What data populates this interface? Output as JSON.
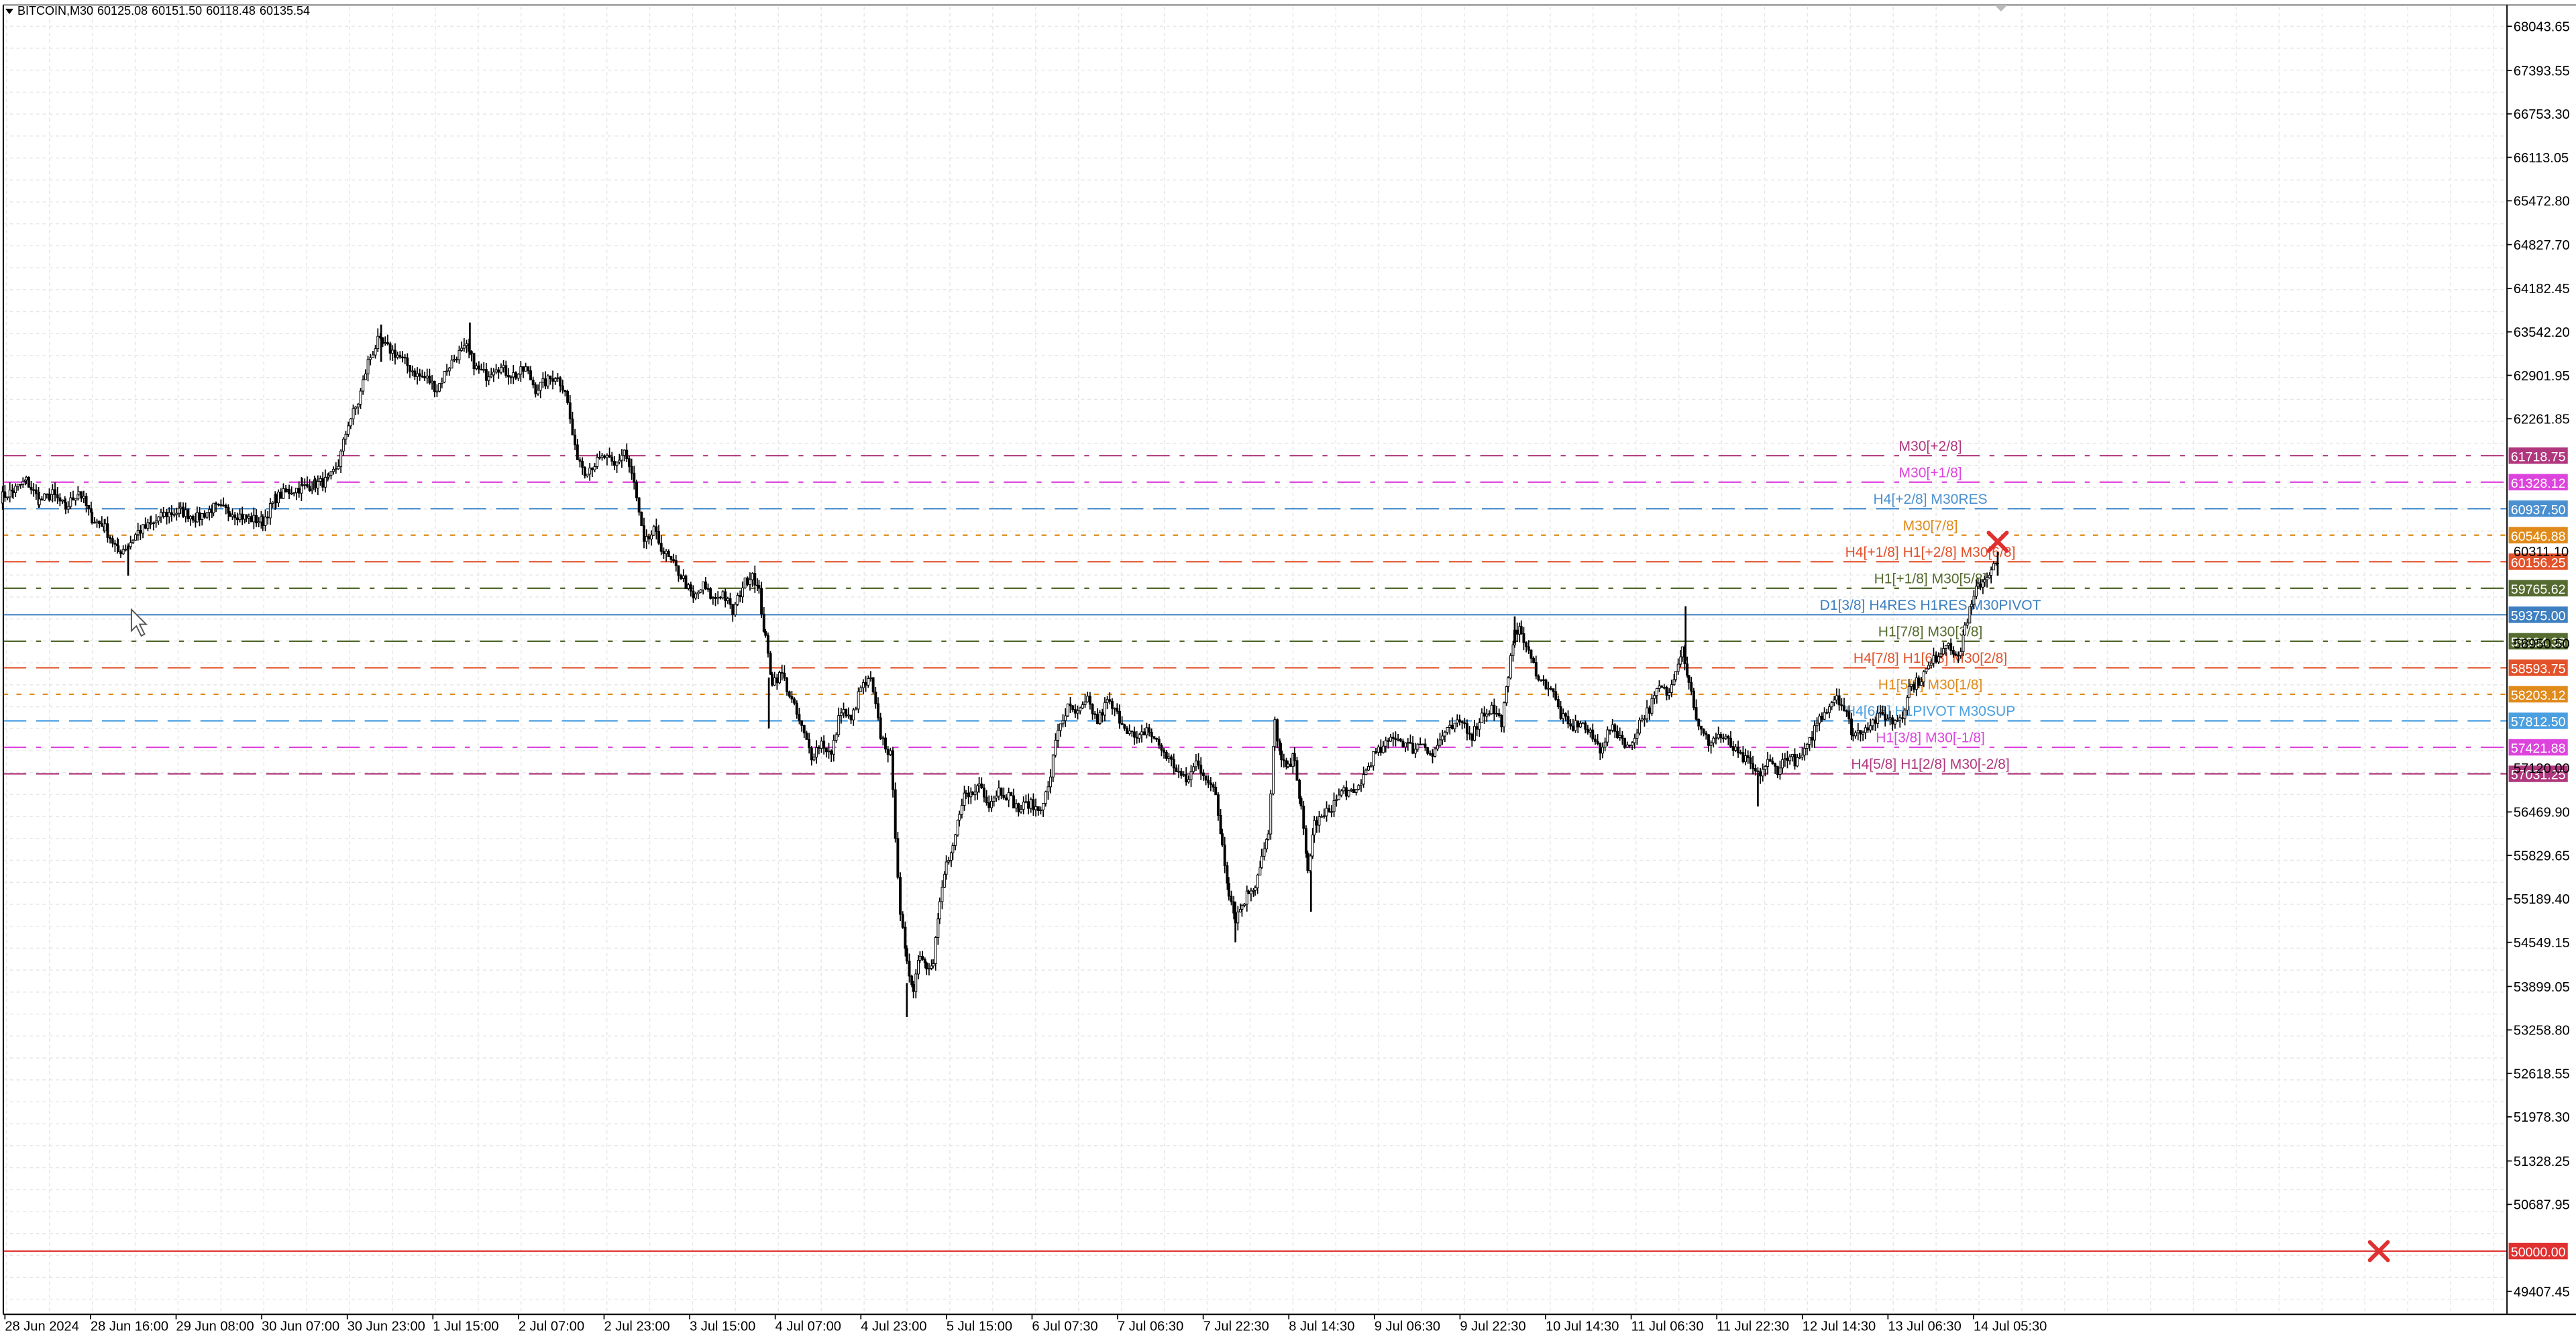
{
  "header": {
    "symbol": "BITCOIN,M30",
    "ohlc": [
      "60125.08",
      "60151.50",
      "60118.48",
      "60135.54"
    ]
  },
  "colors": {
    "background": "#ffffff",
    "grid": "#e6e6e6",
    "candle": "#000000",
    "axis_text": "#000000"
  },
  "chart_data": {
    "type": "candlestick",
    "symbol": "BITCOIN",
    "timeframe": "M30",
    "grid": true,
    "ylim": [
      49100,
      68350
    ],
    "x_ticks": [
      "28 Jun 2024",
      "28 Jun 16:00",
      "29 Jun 08:00",
      "30 Jun 07:00",
      "30 Jun 23:00",
      "1 Jul 15:00",
      "2 Jul 07:00",
      "2 Jul 23:00",
      "3 Jul 15:00",
      "4 Jul 07:00",
      "4 Jul 23:00",
      "5 Jul 15:00",
      "6 Jul 07:30",
      "7 Jul 06:30",
      "7 Jul 22:30",
      "8 Jul 14:30",
      "9 Jul 06:30",
      "9 Jul 22:30",
      "10 Jul 14:30",
      "11 Jul 06:30",
      "11 Jul 22:30",
      "12 Jul 14:30",
      "13 Jul 06:30",
      "14 Jul 05:30"
    ],
    "y_ticks": [
      68043.65,
      67393.55,
      66753.3,
      66113.05,
      65472.8,
      64827.7,
      64182.45,
      63542.2,
      62901.95,
      62261.85,
      56469.9,
      55829.65,
      55189.4,
      54549.15,
      53899.05,
      53258.8,
      52618.55,
      51978.3,
      51328.25,
      50687.95,
      49407.45
    ],
    "y_tick_labels": [
      "68043.65",
      "67393.55",
      "66753.30",
      "66113.05",
      "65472.80",
      "64827.70",
      "64182.45",
      "63542.20",
      "62901.95",
      "62261.85",
      "56469.90",
      "55829.65",
      "55189.40",
      "54549.15",
      "53899.05",
      "53258.80",
      "52618.55",
      "51978.30",
      "51328.25",
      "50687.95",
      "49407.45"
    ],
    "overlapped_axis_labels": [
      "60311.10",
      "58950.50",
      "57120.00"
    ],
    "close_path": [
      [
        0,
        61100
      ],
      [
        8,
        61200
      ],
      [
        16,
        61350
      ],
      [
        24,
        61050
      ],
      [
        32,
        61150
      ],
      [
        40,
        60950
      ],
      [
        48,
        61200
      ],
      [
        56,
        60800
      ],
      [
        64,
        60650
      ],
      [
        72,
        60300
      ],
      [
        78,
        60400
      ],
      [
        84,
        60600
      ],
      [
        92,
        60700
      ],
      [
        100,
        60850
      ],
      [
        110,
        60900
      ],
      [
        120,
        60800
      ],
      [
        130,
        60950
      ],
      [
        140,
        60900
      ],
      [
        150,
        60800
      ],
      [
        160,
        60750
      ],
      [
        168,
        61100
      ],
      [
        176,
        61200
      ],
      [
        184,
        61250
      ],
      [
        192,
        61300
      ],
      [
        200,
        61350
      ],
      [
        206,
        61600
      ],
      [
        212,
        62200
      ],
      [
        218,
        62500
      ],
      [
        224,
        63100
      ],
      [
        230,
        63400
      ],
      [
        236,
        63300
      ],
      [
        242,
        63200
      ],
      [
        248,
        63050
      ],
      [
        254,
        62900
      ],
      [
        260,
        62850
      ],
      [
        266,
        62700
      ],
      [
        272,
        63000
      ],
      [
        278,
        63200
      ],
      [
        284,
        63300
      ],
      [
        290,
        63000
      ],
      [
        296,
        62900
      ],
      [
        302,
        63050
      ],
      [
        308,
        62950
      ],
      [
        314,
        62900
      ],
      [
        320,
        63000
      ],
      [
        326,
        62700
      ],
      [
        332,
        62800
      ],
      [
        338,
        62900
      ],
      [
        344,
        62700
      ],
      [
        350,
        61800
      ],
      [
        356,
        61500
      ],
      [
        362,
        61600
      ],
      [
        368,
        61700
      ],
      [
        374,
        61550
      ],
      [
        380,
        61800
      ],
      [
        386,
        61300
      ],
      [
        392,
        60400
      ],
      [
        398,
        60600
      ],
      [
        404,
        60300
      ],
      [
        410,
        60100
      ],
      [
        416,
        59900
      ],
      [
        422,
        59600
      ],
      [
        428,
        59800
      ],
      [
        434,
        59600
      ],
      [
        440,
        59700
      ],
      [
        446,
        59400
      ],
      [
        452,
        59800
      ],
      [
        458,
        60000
      ],
      [
        462,
        59700
      ],
      [
        466,
        59000
      ],
      [
        470,
        58400
      ],
      [
        476,
        58500
      ],
      [
        482,
        58100
      ],
      [
        488,
        57700
      ],
      [
        494,
        57300
      ],
      [
        500,
        57500
      ],
      [
        506,
        57300
      ],
      [
        512,
        58000
      ],
      [
        518,
        57800
      ],
      [
        524,
        58300
      ],
      [
        530,
        58400
      ],
      [
        536,
        57600
      ],
      [
        542,
        57300
      ],
      [
        548,
        55000
      ],
      [
        552,
        54200
      ],
      [
        556,
        53900
      ],
      [
        560,
        54400
      ],
      [
        564,
        54200
      ],
      [
        568,
        54300
      ],
      [
        572,
        55100
      ],
      [
        576,
        55700
      ],
      [
        580,
        55900
      ],
      [
        584,
        56400
      ],
      [
        588,
        56800
      ],
      [
        592,
        56700
      ],
      [
        596,
        56900
      ],
      [
        602,
        56600
      ],
      [
        608,
        56800
      ],
      [
        614,
        56700
      ],
      [
        620,
        56500
      ],
      [
        626,
        56600
      ],
      [
        632,
        56500
      ],
      [
        638,
        56800
      ],
      [
        644,
        57700
      ],
      [
        650,
        58000
      ],
      [
        656,
        57900
      ],
      [
        662,
        58100
      ],
      [
        668,
        57800
      ],
      [
        674,
        58100
      ],
      [
        680,
        57900
      ],
      [
        686,
        57700
      ],
      [
        692,
        57500
      ],
      [
        698,
        57700
      ],
      [
        704,
        57500
      ],
      [
        710,
        57300
      ],
      [
        716,
        57100
      ],
      [
        722,
        56900
      ],
      [
        728,
        57200
      ],
      [
        734,
        57000
      ],
      [
        740,
        56700
      ],
      [
        744,
        56000
      ],
      [
        748,
        55300
      ],
      [
        752,
        54900
      ],
      [
        756,
        55100
      ],
      [
        760,
        55300
      ],
      [
        764,
        55400
      ],
      [
        768,
        55800
      ],
      [
        772,
        56100
      ],
      [
        776,
        57800
      ],
      [
        780,
        57200
      ],
      [
        784,
        57100
      ],
      [
        788,
        57300
      ],
      [
        792,
        56500
      ],
      [
        796,
        55600
      ],
      [
        800,
        56300
      ],
      [
        806,
        56400
      ],
      [
        812,
        56600
      ],
      [
        818,
        56800
      ],
      [
        824,
        56700
      ],
      [
        830,
        57000
      ],
      [
        836,
        57300
      ],
      [
        842,
        57400
      ],
      [
        848,
        57600
      ],
      [
        854,
        57500
      ],
      [
        860,
        57400
      ],
      [
        866,
        57500
      ],
      [
        872,
        57300
      ],
      [
        878,
        57600
      ],
      [
        884,
        57700
      ],
      [
        890,
        57800
      ],
      [
        896,
        57600
      ],
      [
        902,
        57900
      ],
      [
        908,
        58000
      ],
      [
        914,
        57800
      ],
      [
        918,
        58400
      ],
      [
        922,
        59200
      ],
      [
        926,
        59100
      ],
      [
        932,
        58700
      ],
      [
        938,
        58400
      ],
      [
        944,
        58300
      ],
      [
        950,
        57900
      ],
      [
        956,
        57700
      ],
      [
        962,
        57800
      ],
      [
        968,
        57600
      ],
      [
        974,
        57400
      ],
      [
        980,
        57700
      ],
      [
        986,
        57600
      ],
      [
        992,
        57400
      ],
      [
        998,
        57800
      ],
      [
        1004,
        58000
      ],
      [
        1010,
        58300
      ],
      [
        1016,
        58200
      ],
      [
        1020,
        58600
      ],
      [
        1024,
        58900
      ],
      [
        1028,
        58400
      ],
      [
        1034,
        57700
      ],
      [
        1040,
        57500
      ],
      [
        1046,
        57600
      ],
      [
        1052,
        57500
      ],
      [
        1058,
        57300
      ],
      [
        1064,
        57200
      ],
      [
        1070,
        57000
      ],
      [
        1076,
        57200
      ],
      [
        1082,
        57100
      ],
      [
        1088,
        57300
      ],
      [
        1094,
        57200
      ],
      [
        1100,
        57400
      ],
      [
        1106,
        57800
      ],
      [
        1112,
        58000
      ],
      [
        1118,
        58200
      ],
      [
        1124,
        57900
      ],
      [
        1128,
        57600
      ],
      [
        1134,
        57700
      ],
      [
        1140,
        57800
      ],
      [
        1146,
        57900
      ],
      [
        1152,
        57800
      ],
      [
        1158,
        57900
      ],
      [
        1162,
        58300
      ],
      [
        1168,
        58400
      ],
      [
        1174,
        58600
      ],
      [
        1180,
        58800
      ],
      [
        1186,
        59000
      ],
      [
        1192,
        58700
      ],
      [
        1196,
        59200
      ],
      [
        1200,
        59500
      ],
      [
        1204,
        59800
      ],
      [
        1208,
        59900
      ],
      [
        1212,
        60050
      ],
      [
        1216,
        60135
      ]
    ],
    "extremes": [
      [
        232,
        63650,
        63100
      ],
      [
        286,
        63680,
        63200
      ],
      [
        552,
        53950,
        53450
      ],
      [
        752,
        55150,
        54550
      ],
      [
        798,
        55600,
        55000
      ],
      [
        922,
        59350,
        58950
      ],
      [
        1026,
        59500,
        58700
      ],
      [
        1070,
        57050,
        56550
      ],
      [
        468,
        58450,
        57700
      ],
      [
        78,
        60400,
        59950
      ],
      [
        1216,
        60300,
        59950
      ]
    ],
    "levels": [
      {
        "price": 61718.75,
        "axis_label": "61718.75",
        "text": "M30[+2/8]",
        "color": "#b0377e",
        "dash": "14,6,3,6"
      },
      {
        "price": 61328.12,
        "axis_label": "61328.12",
        "text": "M30[+1/8]",
        "color": "#dd44dd",
        "dash": "14,6,3,6"
      },
      {
        "price": 60937.5,
        "axis_label": "60937.50",
        "text": "H4[+2/8] M30RES",
        "color": "#4a90d0",
        "dash": "14,6"
      },
      {
        "price": 60546.88,
        "axis_label": "60546.88",
        "text": "M30[7/8]",
        "color": "#e08a1a",
        "dash": "3,5"
      },
      {
        "price": 60156.25,
        "axis_label": "60156.25",
        "text": "H4[+1/8] H1[+2/8] M30[6/8]",
        "color": "#e2522a",
        "dash": "14,6"
      },
      {
        "price": 59765.62,
        "axis_label": "59765.62",
        "text": "H1[+1/8] M30[5/8]",
        "color": "#556b2f",
        "dash": "14,6,3,6"
      },
      {
        "price": 59375.0,
        "axis_label": "59375.00",
        "text": "D1[3/8] H4RES H1RES M30PIVOT",
        "color": "#3d7fc1",
        "dash": ""
      },
      {
        "price": 58984.38,
        "axis_label": "58984.38",
        "text": "H1[7/8] M30[3/8]",
        "color": "#556b2f",
        "dash": "14,6,3,6"
      },
      {
        "price": 58593.75,
        "axis_label": "58593.75",
        "text": "H4[7/8] H1[6/8] M30[2/8]",
        "color": "#e2522a",
        "dash": "14,6"
      },
      {
        "price": 58203.12,
        "axis_label": "58203.12",
        "text": "H1[5/8] M30[1/8]",
        "color": "#e08a1a",
        "dash": "3,5"
      },
      {
        "price": 57812.5,
        "axis_label": "57812.50",
        "text": "H4[6/8] H1PIVOT M30SUP",
        "color": "#4a9fe0",
        "dash": "14,6"
      },
      {
        "price": 57421.88,
        "axis_label": "57421.88",
        "text": "H1[3/8] M30[-1/8]",
        "color": "#dd44dd",
        "dash": "14,6,3,6"
      },
      {
        "price": 57031.25,
        "axis_label": "57031.25",
        "text": "H4[5/8] H1[2/8] M30[-2/8]",
        "color": "#b0377e",
        "dash": "14,6"
      },
      {
        "price": 50000.0,
        "axis_label": "50000.00",
        "text": "",
        "color": "#e03030",
        "dash": ""
      }
    ],
    "markers": [
      {
        "type": "cross",
        "x": 1216,
        "price": 60450,
        "color": "#e03030"
      },
      {
        "type": "cross",
        "x": 1448,
        "price": 50000,
        "color": "#e03030"
      }
    ]
  }
}
